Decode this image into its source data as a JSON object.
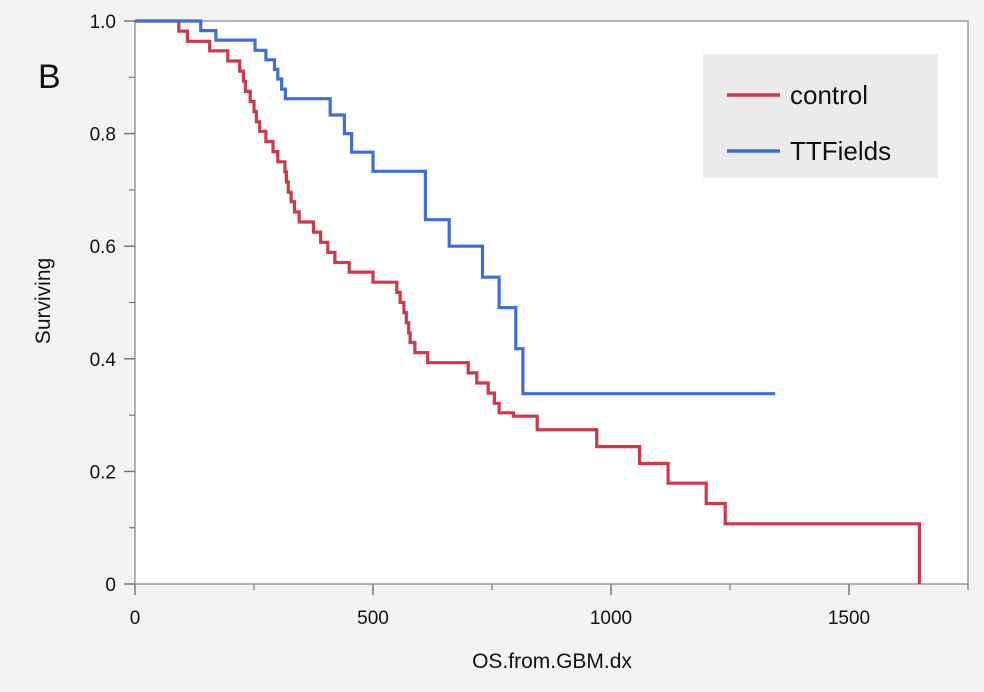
{
  "panel_label": "B",
  "chart_data": {
    "type": "line",
    "step": true,
    "xlabel": "OS.from.GBM.dx",
    "ylabel": "Surviving",
    "xlim": [
      0,
      1750
    ],
    "ylim": [
      0,
      1.0
    ],
    "x_ticks": [
      0,
      500,
      1000,
      1500
    ],
    "x_tick_labels": [
      "0",
      "500",
      "1000",
      "1500"
    ],
    "x_minor_ticks": [
      250,
      750,
      1250,
      1750
    ],
    "y_ticks": [
      0,
      0.2,
      0.4,
      0.6,
      0.8,
      1.0
    ],
    "y_tick_labels": [
      "0",
      "0.2",
      "0.4",
      "0.6",
      "0.8",
      "1.0"
    ],
    "y_minor_ticks": [
      0.1,
      0.3,
      0.5,
      0.7,
      0.9
    ],
    "grid": false,
    "legend_position": "top-right",
    "series": [
      {
        "name": "control",
        "color": "#d0384a",
        "points": [
          [
            0,
            1.0
          ],
          [
            92,
            0.982
          ],
          [
            110,
            0.964
          ],
          [
            157,
            0.947
          ],
          [
            195,
            0.929
          ],
          [
            220,
            0.911
          ],
          [
            228,
            0.893
          ],
          [
            232,
            0.875
          ],
          [
            242,
            0.857
          ],
          [
            250,
            0.839
          ],
          [
            255,
            0.821
          ],
          [
            262,
            0.804
          ],
          [
            275,
            0.786
          ],
          [
            290,
            0.768
          ],
          [
            300,
            0.75
          ],
          [
            315,
            0.732
          ],
          [
            318,
            0.714
          ],
          [
            322,
            0.696
          ],
          [
            328,
            0.679
          ],
          [
            335,
            0.661
          ],
          [
            345,
            0.643
          ],
          [
            375,
            0.625
          ],
          [
            390,
            0.607
          ],
          [
            405,
            0.589
          ],
          [
            420,
            0.571
          ],
          [
            450,
            0.554
          ],
          [
            500,
            0.536
          ],
          [
            550,
            0.518
          ],
          [
            557,
            0.5
          ],
          [
            565,
            0.482
          ],
          [
            570,
            0.464
          ],
          [
            575,
            0.446
          ],
          [
            578,
            0.429
          ],
          [
            588,
            0.411
          ],
          [
            615,
            0.393
          ],
          [
            700,
            0.375
          ],
          [
            718,
            0.357
          ],
          [
            742,
            0.339
          ],
          [
            755,
            0.321
          ],
          [
            765,
            0.304
          ],
          [
            795,
            0.298
          ],
          [
            845,
            0.274
          ],
          [
            970,
            0.244
          ],
          [
            1060,
            0.214
          ],
          [
            1120,
            0.179
          ],
          [
            1200,
            0.143
          ],
          [
            1240,
            0.107
          ],
          [
            1648,
            0.107
          ],
          [
            1648,
            0.0
          ]
        ]
      },
      {
        "name": "TTFields",
        "color": "#3f6fd6",
        "points": [
          [
            0,
            1.0
          ],
          [
            138,
            0.983
          ],
          [
            170,
            0.966
          ],
          [
            252,
            0.948
          ],
          [
            275,
            0.931
          ],
          [
            293,
            0.914
          ],
          [
            300,
            0.897
          ],
          [
            308,
            0.879
          ],
          [
            316,
            0.862
          ],
          [
            410,
            0.833
          ],
          [
            440,
            0.8
          ],
          [
            455,
            0.767
          ],
          [
            500,
            0.733
          ],
          [
            610,
            0.647
          ],
          [
            660,
            0.6
          ],
          [
            730,
            0.545
          ],
          [
            765,
            0.491
          ],
          [
            800,
            0.418
          ],
          [
            815,
            0.338
          ],
          [
            1345,
            0.338
          ]
        ]
      }
    ]
  }
}
